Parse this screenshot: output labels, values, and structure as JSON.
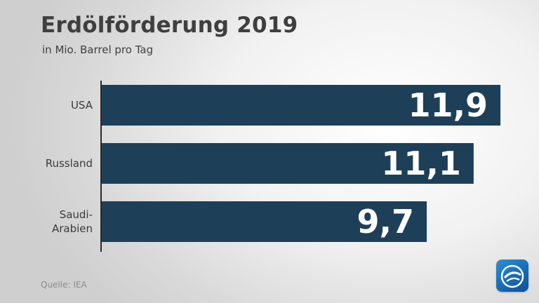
{
  "chart_data": {
    "type": "bar",
    "orientation": "horizontal",
    "title": "Erdölförderung 2019",
    "subtitle": "in Mio. Barrel pro Tag",
    "categories": [
      [
        "USA"
      ],
      [
        "Russland"
      ],
      [
        "Saudi-",
        "Arabien"
      ]
    ],
    "values": [
      11.9,
      11.1,
      9.7
    ],
    "value_labels": [
      "11,9",
      "11,1",
      "9,7"
    ],
    "xlim": [
      0,
      12.15
    ],
    "grid": false,
    "bar_color": "#1e3f58",
    "value_label_color": "#ffffff",
    "source": "Quelle: IEA"
  }
}
